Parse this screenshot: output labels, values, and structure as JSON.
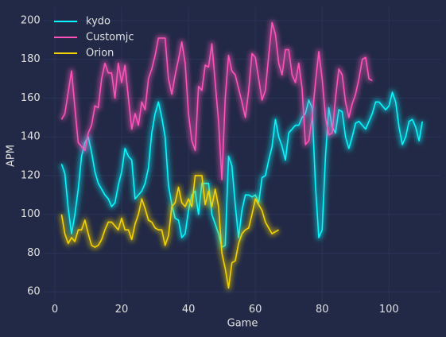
{
  "chart_data": {
    "type": "line",
    "xlabel": "Game",
    "ylabel": "APM",
    "xlim": [
      -3.4,
      115.4
    ],
    "ylim": [
      54.05,
      206.95
    ],
    "xticks": [
      0,
      20,
      40,
      60,
      80,
      100
    ],
    "yticks": [
      60,
      80,
      100,
      120,
      140,
      160,
      180,
      200
    ],
    "grid": true,
    "legend": "upper left",
    "series": [
      {
        "name": "kydo",
        "color": "#08F7FE",
        "x": [
          2,
          3,
          4,
          5,
          6,
          7,
          8,
          9,
          10,
          11,
          12,
          13,
          14,
          15,
          16,
          17,
          18,
          19,
          20,
          21,
          22,
          23,
          24,
          25,
          26,
          27,
          28,
          29,
          30,
          31,
          32,
          33,
          34,
          35,
          36,
          37,
          38,
          39,
          40,
          41,
          42,
          43,
          44,
          45,
          46,
          47,
          48,
          49,
          50,
          51,
          52,
          53,
          54,
          55,
          56,
          57,
          58,
          59,
          60,
          61,
          62,
          63,
          64,
          65,
          66,
          67,
          68,
          69,
          70,
          71,
          72,
          73,
          74,
          75,
          76,
          77,
          78,
          79,
          80,
          81,
          82,
          83,
          84,
          85,
          86,
          87,
          88,
          89,
          90,
          91,
          92,
          93,
          94,
          95,
          96,
          97,
          98,
          99,
          100,
          101,
          102,
          103,
          104,
          105,
          106,
          107,
          108,
          109,
          110
        ],
        "values": [
          126,
          121,
          103,
          90,
          100,
          113,
          130,
          137,
          140,
          132,
          122,
          116,
          113,
          110,
          108,
          104,
          106,
          115,
          122,
          134,
          130,
          128,
          108,
          110,
          112,
          116,
          124,
          142,
          152,
          158,
          150,
          140,
          115,
          105,
          98,
          97,
          88,
          90,
          102,
          110,
          112,
          100,
          116,
          116,
          116,
          100,
          95,
          90,
          83,
          84,
          130,
          125,
          105,
          88,
          102,
          110,
          110,
          109,
          110,
          106,
          119,
          120,
          128,
          135,
          149,
          140,
          135,
          128,
          142,
          144,
          146,
          146,
          150,
          152,
          159,
          155,
          115,
          88,
          92,
          130,
          155,
          145,
          142,
          154,
          153,
          140,
          134,
          140,
          147,
          148,
          146,
          144,
          148,
          152,
          158,
          158,
          156,
          154,
          156,
          163,
          158,
          145,
          136,
          140,
          148,
          149,
          145,
          138,
          148
        ]
      },
      {
        "name": "Customjc",
        "color": "#FE53BB",
        "x": [
          2,
          3,
          4,
          5,
          6,
          7,
          8,
          9,
          10,
          11,
          12,
          13,
          14,
          15,
          16,
          17,
          18,
          19,
          20,
          21,
          22,
          23,
          24,
          25,
          26,
          27,
          28,
          29,
          30,
          31,
          32,
          33,
          34,
          35,
          36,
          37,
          38,
          39,
          40,
          41,
          42,
          43,
          44,
          45,
          46,
          47,
          48,
          49,
          50,
          51,
          52,
          53,
          54,
          55,
          56,
          57,
          58,
          59,
          60,
          61,
          62,
          63,
          64,
          65,
          66,
          67,
          68,
          69,
          70,
          71,
          72,
          73,
          74,
          75,
          76,
          77,
          78,
          79,
          80,
          81,
          82,
          83,
          84,
          85,
          86,
          87,
          88,
          89,
          90,
          91,
          92,
          93,
          94,
          95
        ],
        "values": [
          149,
          152,
          163,
          174,
          155,
          137,
          135,
          133,
          142,
          146,
          156,
          155,
          170,
          178,
          173,
          173,
          160,
          178,
          168,
          177,
          160,
          144,
          152,
          146,
          158,
          154,
          170,
          175,
          182,
          191,
          191,
          191,
          170,
          162,
          172,
          180,
          189,
          178,
          152,
          138,
          133,
          166,
          164,
          177,
          176,
          188,
          168,
          148,
          118,
          160,
          182,
          174,
          172,
          165,
          158,
          150,
          164,
          183,
          181,
          170,
          159,
          164,
          182,
          199,
          193,
          178,
          172,
          185,
          185,
          172,
          168,
          178,
          165,
          136,
          138,
          150,
          168,
          184,
          170,
          150,
          141,
          142,
          160,
          175,
          172,
          158,
          150,
          157,
          162,
          170,
          180,
          181,
          170,
          169
        ]
      },
      {
        "name": "Orion",
        "color": "#F5D300",
        "x": [
          2,
          3,
          4,
          5,
          6,
          7,
          8,
          9,
          10,
          11,
          12,
          13,
          14,
          15,
          16,
          17,
          18,
          19,
          20,
          21,
          22,
          23,
          24,
          25,
          26,
          27,
          28,
          29,
          30,
          31,
          32,
          33,
          34,
          35,
          36,
          37,
          38,
          39,
          40,
          41,
          42,
          43,
          44,
          45,
          46,
          47,
          48,
          49,
          50,
          51,
          52,
          53,
          54,
          55,
          56,
          57,
          58,
          59,
          60,
          61,
          62,
          63,
          64,
          65,
          66,
          67
        ],
        "values": [
          100,
          90,
          85,
          88,
          86,
          92,
          92,
          97,
          90,
          84,
          83,
          84,
          87,
          92,
          96,
          96,
          94,
          92,
          98,
          92,
          92,
          87,
          95,
          100,
          108,
          103,
          97,
          96,
          93,
          92,
          92,
          84,
          89,
          104,
          106,
          114,
          106,
          104,
          108,
          104,
          120,
          120,
          120,
          105,
          112,
          104,
          113,
          104,
          80,
          72,
          62,
          75,
          76,
          85,
          90,
          92,
          93,
          100,
          108,
          105,
          102,
          96,
          93,
          90,
          91,
          92
        ]
      }
    ]
  }
}
